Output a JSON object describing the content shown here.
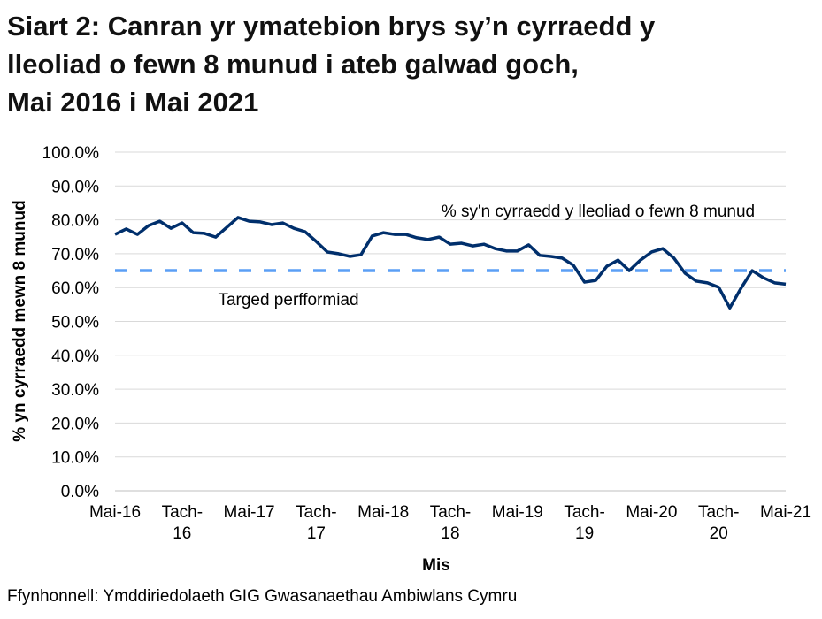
{
  "title_lines": [
    "Siart 2: Canran yr ymatebion brys sy’n cyrraedd y",
    "lleoliad o fewn 8 munud i ateb galwad goch,",
    "Mai 2016 i Mai 2021"
  ],
  "source": "Ffynhonnell: Ymddiriedolaeth GIG Gwasanaethau Ambiwlans Cymru",
  "chart_data": {
    "type": "line",
    "xlabel": "Mis",
    "ylabel": "% yn cyrraedd mewn 8 munud",
    "ylim": [
      0,
      100
    ],
    "y_ticks": [
      "0.0%",
      "10.0%",
      "20.0%",
      "30.0%",
      "40.0%",
      "50.0%",
      "60.0%",
      "70.0%",
      "80.0%",
      "90.0%",
      "100.0%"
    ],
    "x_ticks": [
      {
        "month": 0,
        "label": [
          "Mai-16"
        ]
      },
      {
        "month": 6,
        "label": [
          "Tach-",
          "16"
        ]
      },
      {
        "month": 12,
        "label": [
          "Mai-17"
        ]
      },
      {
        "month": 18,
        "label": [
          "Tach-",
          "17"
        ]
      },
      {
        "month": 24,
        "label": [
          "Mai-18"
        ]
      },
      {
        "month": 30,
        "label": [
          "Tach-",
          "18"
        ]
      },
      {
        "month": 36,
        "label": [
          "Mai-19"
        ]
      },
      {
        "month": 42,
        "label": [
          "Tach-",
          "19"
        ]
      },
      {
        "month": 48,
        "label": [
          "Mai-20"
        ]
      },
      {
        "month": 54,
        "label": [
          "Tach-",
          "20"
        ]
      },
      {
        "month": 60,
        "label": [
          "Mai-21"
        ]
      }
    ],
    "grid": true,
    "series": [
      {
        "name": "% sy'n cyrraedd y lleoliad o fewn 8 munud",
        "color": "#002f6c",
        "style": "solid",
        "values": [
          75.7,
          77.3,
          75.7,
          78.3,
          79.6,
          77.5,
          79.1,
          76.2,
          76.0,
          74.9,
          77.8,
          80.7,
          79.6,
          79.4,
          78.6,
          79.1,
          77.5,
          76.5,
          73.6,
          70.5,
          70.0,
          69.2,
          69.7,
          75.2,
          76.2,
          75.7,
          75.7,
          74.7,
          74.2,
          74.9,
          72.8,
          73.1,
          72.3,
          72.8,
          71.5,
          70.8,
          70.8,
          72.6,
          69.5,
          69.2,
          68.7,
          66.6,
          61.6,
          62.1,
          66.3,
          68.1,
          65.0,
          68.1,
          70.5,
          71.5,
          68.7,
          64.2,
          61.9,
          61.4,
          60.1,
          54.0,
          59.8,
          65.0,
          62.9,
          61.4,
          61.0
        ]
      },
      {
        "name": "Targed perfformiad",
        "color": "#5b9ff5",
        "style": "dashed",
        "value": 65.0
      }
    ]
  }
}
